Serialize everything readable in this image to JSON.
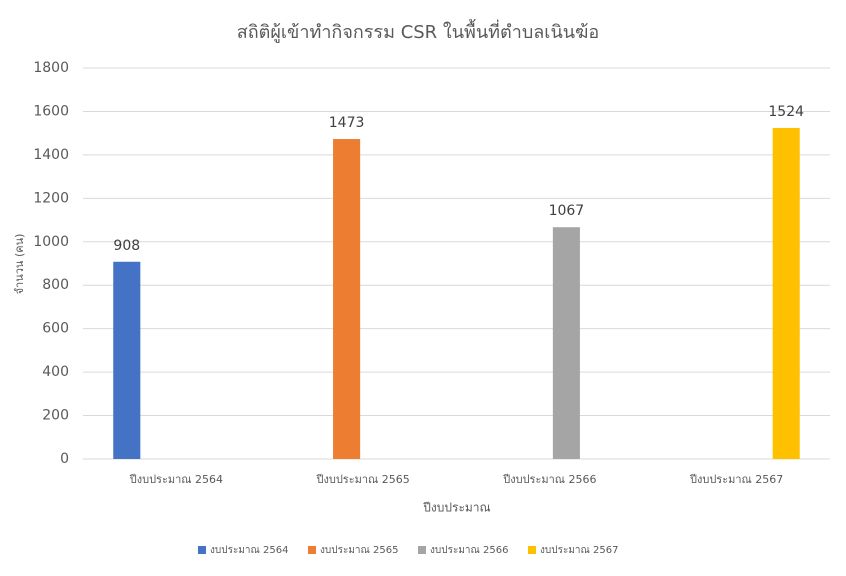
{
  "chart_data": {
    "type": "bar",
    "title": "สถิติผู้เข้าทำกิจกรรม CSR ในพื้นที่ตำบลเนินฆ้อ",
    "x_label": "ปีงบประมาณ",
    "y_label": "จำนวน (คน)",
    "categories": [
      "ปีงบประมาณ 2564",
      "ปีงบประมาณ 2565",
      "ปีงบประมาณ 2566",
      "ปีงบประมาณ 2567"
    ],
    "series": [
      {
        "name": "งบประมาณ 2564",
        "color": "#4472c4",
        "values": [
          908,
          null,
          null,
          null
        ]
      },
      {
        "name": "งบประมาณ 2565",
        "color": "#ed7d31",
        "values": [
          null,
          1473,
          null,
          null
        ]
      },
      {
        "name": "งบประมาณ 2566",
        "color": "#a5a5a5",
        "values": [
          null,
          null,
          1067,
          null
        ]
      },
      {
        "name": "งบประมาณ 2567",
        "color": "#ffc000",
        "values": [
          null,
          null,
          null,
          1524
        ]
      }
    ],
    "ylim": [
      0,
      1800
    ],
    "yticks": [
      0,
      200,
      400,
      600,
      800,
      1000,
      1200,
      1400,
      1600,
      1800
    ],
    "grid": true,
    "legend": "bottom"
  }
}
